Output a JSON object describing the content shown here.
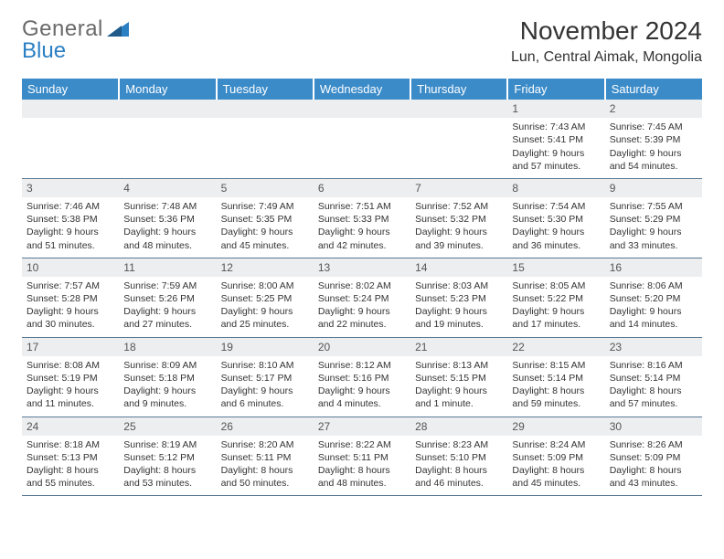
{
  "logo": {
    "text_a": "General",
    "text_b": "Blue"
  },
  "title": "November 2024",
  "location": "Lun, Central Aimak, Mongolia",
  "colors": {
    "header_bg": "#3b8bc9",
    "header_text": "#ffffff",
    "daynum_bg": "#eceeef",
    "border": "#5a7a95",
    "text": "#333333",
    "logo_gray": "#6a6a6a",
    "logo_blue": "#2b7fc3"
  },
  "day_headers": [
    "Sunday",
    "Monday",
    "Tuesday",
    "Wednesday",
    "Thursday",
    "Friday",
    "Saturday"
  ],
  "weeks": [
    [
      null,
      null,
      null,
      null,
      null,
      {
        "n": "1",
        "sr": "7:43 AM",
        "ss": "5:41 PM",
        "dl": "9 hours and 57 minutes."
      },
      {
        "n": "2",
        "sr": "7:45 AM",
        "ss": "5:39 PM",
        "dl": "9 hours and 54 minutes."
      }
    ],
    [
      {
        "n": "3",
        "sr": "7:46 AM",
        "ss": "5:38 PM",
        "dl": "9 hours and 51 minutes."
      },
      {
        "n": "4",
        "sr": "7:48 AM",
        "ss": "5:36 PM",
        "dl": "9 hours and 48 minutes."
      },
      {
        "n": "5",
        "sr": "7:49 AM",
        "ss": "5:35 PM",
        "dl": "9 hours and 45 minutes."
      },
      {
        "n": "6",
        "sr": "7:51 AM",
        "ss": "5:33 PM",
        "dl": "9 hours and 42 minutes."
      },
      {
        "n": "7",
        "sr": "7:52 AM",
        "ss": "5:32 PM",
        "dl": "9 hours and 39 minutes."
      },
      {
        "n": "8",
        "sr": "7:54 AM",
        "ss": "5:30 PM",
        "dl": "9 hours and 36 minutes."
      },
      {
        "n": "9",
        "sr": "7:55 AM",
        "ss": "5:29 PM",
        "dl": "9 hours and 33 minutes."
      }
    ],
    [
      {
        "n": "10",
        "sr": "7:57 AM",
        "ss": "5:28 PM",
        "dl": "9 hours and 30 minutes."
      },
      {
        "n": "11",
        "sr": "7:59 AM",
        "ss": "5:26 PM",
        "dl": "9 hours and 27 minutes."
      },
      {
        "n": "12",
        "sr": "8:00 AM",
        "ss": "5:25 PM",
        "dl": "9 hours and 25 minutes."
      },
      {
        "n": "13",
        "sr": "8:02 AM",
        "ss": "5:24 PM",
        "dl": "9 hours and 22 minutes."
      },
      {
        "n": "14",
        "sr": "8:03 AM",
        "ss": "5:23 PM",
        "dl": "9 hours and 19 minutes."
      },
      {
        "n": "15",
        "sr": "8:05 AM",
        "ss": "5:22 PM",
        "dl": "9 hours and 17 minutes."
      },
      {
        "n": "16",
        "sr": "8:06 AM",
        "ss": "5:20 PM",
        "dl": "9 hours and 14 minutes."
      }
    ],
    [
      {
        "n": "17",
        "sr": "8:08 AM",
        "ss": "5:19 PM",
        "dl": "9 hours and 11 minutes."
      },
      {
        "n": "18",
        "sr": "8:09 AM",
        "ss": "5:18 PM",
        "dl": "9 hours and 9 minutes."
      },
      {
        "n": "19",
        "sr": "8:10 AM",
        "ss": "5:17 PM",
        "dl": "9 hours and 6 minutes."
      },
      {
        "n": "20",
        "sr": "8:12 AM",
        "ss": "5:16 PM",
        "dl": "9 hours and 4 minutes."
      },
      {
        "n": "21",
        "sr": "8:13 AM",
        "ss": "5:15 PM",
        "dl": "9 hours and 1 minute."
      },
      {
        "n": "22",
        "sr": "8:15 AM",
        "ss": "5:14 PM",
        "dl": "8 hours and 59 minutes."
      },
      {
        "n": "23",
        "sr": "8:16 AM",
        "ss": "5:14 PM",
        "dl": "8 hours and 57 minutes."
      }
    ],
    [
      {
        "n": "24",
        "sr": "8:18 AM",
        "ss": "5:13 PM",
        "dl": "8 hours and 55 minutes."
      },
      {
        "n": "25",
        "sr": "8:19 AM",
        "ss": "5:12 PM",
        "dl": "8 hours and 53 minutes."
      },
      {
        "n": "26",
        "sr": "8:20 AM",
        "ss": "5:11 PM",
        "dl": "8 hours and 50 minutes."
      },
      {
        "n": "27",
        "sr": "8:22 AM",
        "ss": "5:11 PM",
        "dl": "8 hours and 48 minutes."
      },
      {
        "n": "28",
        "sr": "8:23 AM",
        "ss": "5:10 PM",
        "dl": "8 hours and 46 minutes."
      },
      {
        "n": "29",
        "sr": "8:24 AM",
        "ss": "5:09 PM",
        "dl": "8 hours and 45 minutes."
      },
      {
        "n": "30",
        "sr": "8:26 AM",
        "ss": "5:09 PM",
        "dl": "8 hours and 43 minutes."
      }
    ]
  ],
  "label_sunrise": "Sunrise: ",
  "label_sunset": "Sunset: ",
  "label_daylight": "Daylight: "
}
